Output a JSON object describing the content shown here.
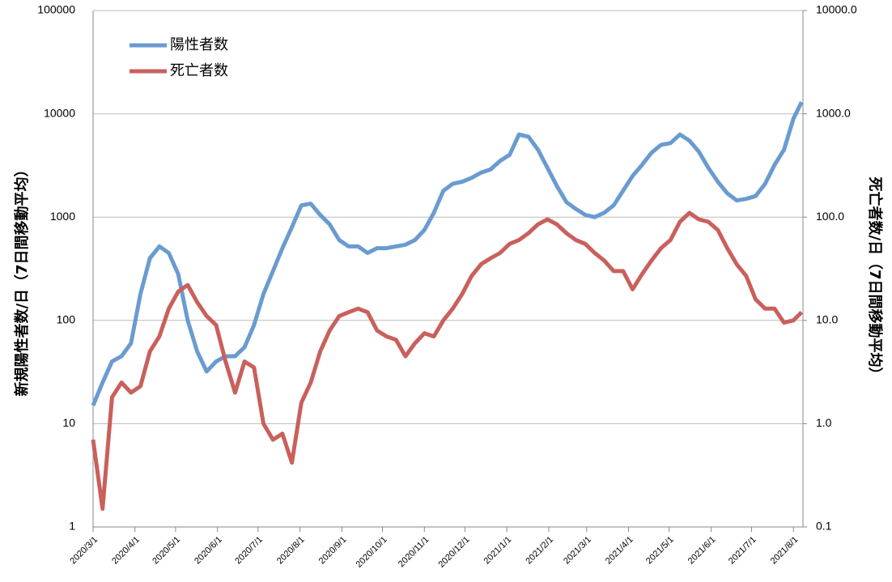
{
  "chart_data": {
    "type": "line",
    "x": [
      "2020/3/1",
      "2020/3/8",
      "2020/3/15",
      "2020/3/22",
      "2020/3/29",
      "2020/4/5",
      "2020/4/12",
      "2020/4/19",
      "2020/4/26",
      "2020/5/3",
      "2020/5/10",
      "2020/5/17",
      "2020/5/24",
      "2020/5/31",
      "2020/6/7",
      "2020/6/14",
      "2020/6/21",
      "2020/6/28",
      "2020/7/5",
      "2020/7/12",
      "2020/7/19",
      "2020/7/26",
      "2020/8/2",
      "2020/8/9",
      "2020/8/16",
      "2020/8/23",
      "2020/8/30",
      "2020/9/6",
      "2020/9/13",
      "2020/9/20",
      "2020/9/27",
      "2020/10/4",
      "2020/10/11",
      "2020/10/18",
      "2020/10/25",
      "2020/11/1",
      "2020/11/8",
      "2020/11/15",
      "2020/11/22",
      "2020/11/29",
      "2020/12/6",
      "2020/12/13",
      "2020/12/20",
      "2020/12/27",
      "2021/1/3",
      "2021/1/10",
      "2021/1/17",
      "2021/1/24",
      "2021/1/31",
      "2021/2/7",
      "2021/2/14",
      "2021/2/21",
      "2021/2/28",
      "2021/3/7",
      "2021/3/14",
      "2021/3/21",
      "2021/3/28",
      "2021/4/4",
      "2021/4/11",
      "2021/4/18",
      "2021/4/25",
      "2021/5/2",
      "2021/5/9",
      "2021/5/16",
      "2021/5/23",
      "2021/5/30",
      "2021/6/6",
      "2021/6/13",
      "2021/6/20",
      "2021/6/27",
      "2021/7/4",
      "2021/7/11",
      "2021/7/18",
      "2021/7/25",
      "2021/8/1",
      "2021/8/7"
    ],
    "series": [
      {
        "name": "陽性者数",
        "color": "#6a9bd0",
        "axis": "y",
        "values": [
          15,
          25,
          40,
          45,
          60,
          180,
          400,
          520,
          450,
          280,
          100,
          50,
          32,
          40,
          45,
          45,
          55,
          90,
          180,
          300,
          500,
          800,
          1300,
          1350,
          1050,
          850,
          600,
          520,
          520,
          450,
          500,
          500,
          520,
          540,
          600,
          750,
          1100,
          1800,
          2100,
          2200,
          2400,
          2700,
          2900,
          3500,
          4000,
          6300,
          6000,
          4500,
          3000,
          2000,
          1400,
          1200,
          1050,
          1000,
          1100,
          1300,
          1800,
          2500,
          3200,
          4200,
          5000,
          5200,
          6300,
          5500,
          4300,
          3000,
          2200,
          1700,
          1450,
          1500,
          1600,
          2100,
          3200,
          4500,
          9000,
          13000
        ]
      },
      {
        "name": "死亡者数",
        "color": "#c9605c",
        "axis": "y2",
        "values": [
          0.7,
          0.15,
          1.8,
          2.5,
          2.0,
          2.3,
          5,
          7,
          13,
          19,
          22,
          15,
          11,
          9,
          4,
          2,
          4,
          3.5,
          1,
          0.7,
          0.8,
          0.42,
          1.6,
          2.5,
          5,
          8,
          11,
          12,
          13,
          12,
          8,
          7,
          6.5,
          4.5,
          6,
          7.5,
          7,
          10,
          13,
          18,
          27,
          35,
          40,
          45,
          55,
          60,
          70,
          85,
          95,
          85,
          70,
          60,
          55,
          45,
          38,
          30,
          30,
          20,
          28,
          38,
          50,
          60,
          90,
          110,
          95,
          90,
          75,
          50,
          35,
          27,
          16,
          13,
          13,
          9.5,
          10,
          12
        ]
      }
    ],
    "xlim": [
      "2020/3/1",
      "2021/8/8"
    ],
    "xticks": [
      "2020/3/1",
      "2020/4/1",
      "2020/5/1",
      "2020/6/1",
      "2020/7/1",
      "2020/8/1",
      "2020/9/1",
      "2020/10/1",
      "2020/11/1",
      "2020/12/1",
      "2021/1/1",
      "2021/2/1",
      "2021/3/1",
      "2021/4/1",
      "2021/5/1",
      "2021/6/1",
      "2021/7/1",
      "2021/8/1"
    ],
    "ylabel": "新規陽性者数/日（7日間移動平均）",
    "y2label": "死亡者数/日（7日間移動平均）",
    "ylim": [
      1,
      100000
    ],
    "yticks": [
      1,
      10,
      100,
      1000,
      10000,
      100000
    ],
    "y2lim": [
      0.1,
      10000
    ],
    "y2ticks": [
      0.1,
      {
        "value": 1,
        "label": "1.0"
      },
      {
        "value": 10,
        "label": "10.0"
      },
      {
        "value": 100,
        "label": "100.0"
      },
      {
        "value": 1000,
        "label": "1000.0"
      },
      {
        "value": 10000,
        "label": "10000.0"
      }
    ],
    "log_scale": true,
    "grid": true,
    "legend": "upper-left"
  }
}
